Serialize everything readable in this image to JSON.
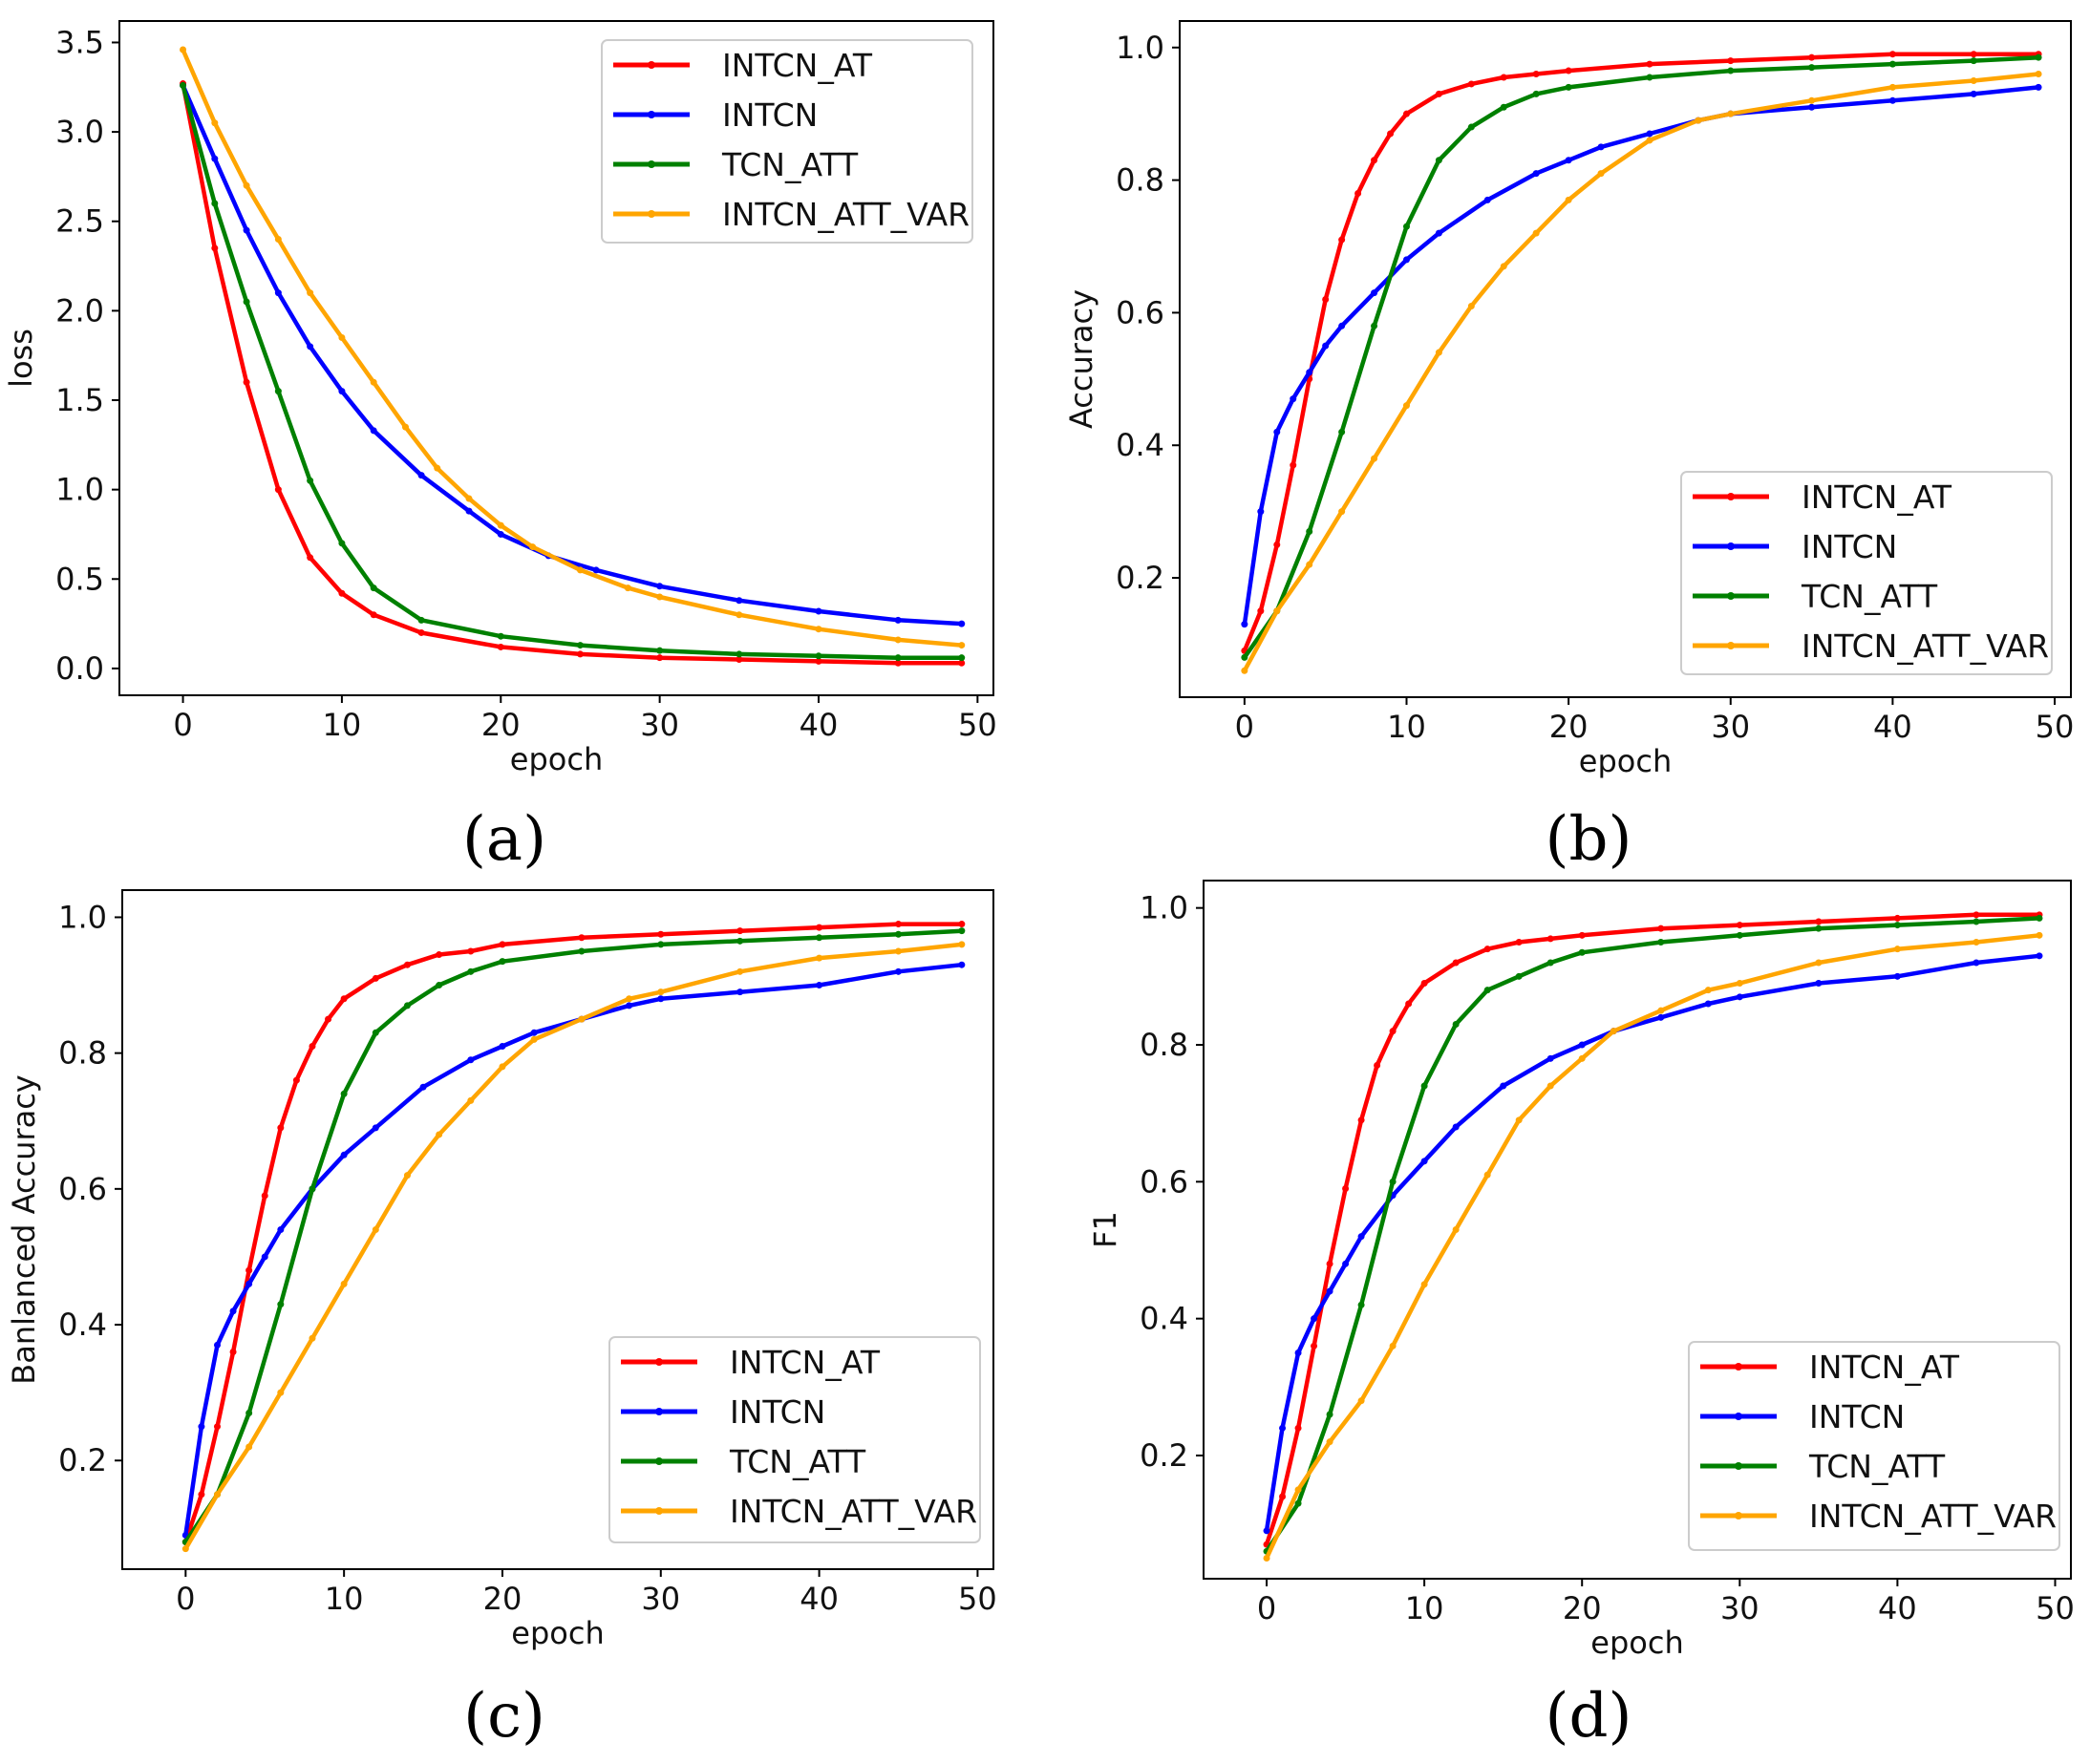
{
  "figure": {
    "panel_labels": [
      "(a)",
      "(b)",
      "(c)",
      "(d)"
    ]
  },
  "colors": {
    "INTCN_AT": "#ff0000",
    "INTCN": "#0000ff",
    "TCN_ATT": "#008000",
    "INTCN_ATT_VAR": "#ffa500"
  },
  "chart_data": [
    {
      "type": "line",
      "panel": "(a)",
      "title": "",
      "xlabel": "epoch",
      "ylabel": "loss",
      "xlim": [
        -4,
        51
      ],
      "ylim": [
        -0.15,
        3.62
      ],
      "xticks": [
        0,
        10,
        20,
        30,
        40,
        50
      ],
      "yticks": [
        0.0,
        0.5,
        1.0,
        1.5,
        2.0,
        2.5,
        3.0,
        3.5
      ],
      "ytick_labels": [
        "0.0",
        "0.5",
        "1.0",
        "1.5",
        "2.0",
        "2.5",
        "3.0",
        "3.5"
      ],
      "legend_position": "top-right",
      "series": [
        {
          "name": "INTCN_AT",
          "x": [
            0,
            2,
            4,
            6,
            8,
            10,
            12,
            15,
            20,
            25,
            30,
            35,
            40,
            45,
            49
          ],
          "values": [
            3.27,
            2.35,
            1.6,
            1.0,
            0.62,
            0.42,
            0.3,
            0.2,
            0.12,
            0.08,
            0.06,
            0.05,
            0.04,
            0.03,
            0.03
          ]
        },
        {
          "name": "INTCN",
          "x": [
            0,
            2,
            4,
            6,
            8,
            10,
            12,
            15,
            18,
            20,
            23,
            26,
            30,
            35,
            40,
            45,
            49
          ],
          "values": [
            3.26,
            2.85,
            2.45,
            2.1,
            1.8,
            1.55,
            1.33,
            1.08,
            0.88,
            0.75,
            0.63,
            0.55,
            0.46,
            0.38,
            0.32,
            0.27,
            0.25
          ]
        },
        {
          "name": "TCN_ATT",
          "x": [
            0,
            2,
            4,
            6,
            8,
            10,
            12,
            15,
            20,
            25,
            30,
            35,
            40,
            45,
            49
          ],
          "values": [
            3.26,
            2.6,
            2.05,
            1.55,
            1.05,
            0.7,
            0.45,
            0.27,
            0.18,
            0.13,
            0.1,
            0.08,
            0.07,
            0.06,
            0.06
          ]
        },
        {
          "name": "INTCN_ATT_VAR",
          "x": [
            0,
            2,
            4,
            6,
            8,
            10,
            12,
            14,
            16,
            18,
            20,
            22,
            25,
            28,
            30,
            35,
            40,
            45,
            49
          ],
          "values": [
            3.46,
            3.05,
            2.7,
            2.4,
            2.1,
            1.85,
            1.6,
            1.35,
            1.12,
            0.95,
            0.8,
            0.68,
            0.55,
            0.45,
            0.4,
            0.3,
            0.22,
            0.16,
            0.13
          ]
        }
      ]
    },
    {
      "type": "line",
      "panel": "(b)",
      "title": "",
      "xlabel": "epoch",
      "ylabel": "Accuracy",
      "xlim": [
        -4,
        51
      ],
      "ylim": [
        0.02,
        1.04
      ],
      "xticks": [
        0,
        10,
        20,
        30,
        40,
        50
      ],
      "yticks": [
        0.2,
        0.4,
        0.6,
        0.8,
        1.0
      ],
      "ytick_labels": [
        "0.2",
        "0.4",
        "0.6",
        "0.8",
        "1.0"
      ],
      "legend_position": "bottom-right",
      "series": [
        {
          "name": "INTCN_AT",
          "x": [
            0,
            1,
            2,
            3,
            4,
            5,
            6,
            7,
            8,
            9,
            10,
            12,
            14,
            16,
            18,
            20,
            25,
            30,
            35,
            40,
            45,
            49
          ],
          "values": [
            0.09,
            0.15,
            0.25,
            0.37,
            0.5,
            0.62,
            0.71,
            0.78,
            0.83,
            0.87,
            0.9,
            0.93,
            0.945,
            0.955,
            0.96,
            0.965,
            0.975,
            0.98,
            0.985,
            0.99,
            0.99,
            0.99
          ]
        },
        {
          "name": "INTCN",
          "x": [
            0,
            1,
            2,
            3,
            4,
            5,
            6,
            8,
            10,
            12,
            15,
            18,
            20,
            22,
            25,
            28,
            30,
            35,
            40,
            45,
            49
          ],
          "values": [
            0.13,
            0.3,
            0.42,
            0.47,
            0.51,
            0.55,
            0.58,
            0.63,
            0.68,
            0.72,
            0.77,
            0.81,
            0.83,
            0.85,
            0.87,
            0.89,
            0.9,
            0.91,
            0.92,
            0.93,
            0.94
          ]
        },
        {
          "name": "TCN_ATT",
          "x": [
            0,
            2,
            4,
            6,
            8,
            10,
            12,
            14,
            16,
            18,
            20,
            25,
            30,
            35,
            40,
            45,
            49
          ],
          "values": [
            0.08,
            0.15,
            0.27,
            0.42,
            0.58,
            0.73,
            0.83,
            0.88,
            0.91,
            0.93,
            0.94,
            0.955,
            0.965,
            0.97,
            0.975,
            0.98,
            0.985
          ]
        },
        {
          "name": "INTCN_ATT_VAR",
          "x": [
            0,
            2,
            4,
            6,
            8,
            10,
            12,
            14,
            16,
            18,
            20,
            22,
            25,
            28,
            30,
            35,
            40,
            45,
            49
          ],
          "values": [
            0.06,
            0.15,
            0.22,
            0.3,
            0.38,
            0.46,
            0.54,
            0.61,
            0.67,
            0.72,
            0.77,
            0.81,
            0.86,
            0.89,
            0.9,
            0.92,
            0.94,
            0.95,
            0.96
          ]
        }
      ]
    },
    {
      "type": "line",
      "panel": "(c)",
      "title": "",
      "xlabel": "epoch",
      "ylabel": "Banlanced Accuracy",
      "xlim": [
        -4,
        51
      ],
      "ylim": [
        0.04,
        1.04
      ],
      "xticks": [
        0,
        10,
        20,
        30,
        40,
        50
      ],
      "yticks": [
        0.2,
        0.4,
        0.6,
        0.8,
        1.0
      ],
      "ytick_labels": [
        "0.2",
        "0.4",
        "0.6",
        "0.8",
        "1.0"
      ],
      "legend_position": "bottom-right",
      "series": [
        {
          "name": "INTCN_AT",
          "x": [
            0,
            1,
            2,
            3,
            4,
            5,
            6,
            7,
            8,
            9,
            10,
            12,
            14,
            16,
            18,
            20,
            25,
            30,
            35,
            40,
            45,
            49
          ],
          "values": [
            0.08,
            0.15,
            0.25,
            0.36,
            0.48,
            0.59,
            0.69,
            0.76,
            0.81,
            0.85,
            0.88,
            0.91,
            0.93,
            0.945,
            0.95,
            0.96,
            0.97,
            0.975,
            0.98,
            0.985,
            0.99,
            0.99
          ]
        },
        {
          "name": "INTCN",
          "x": [
            0,
            1,
            2,
            3,
            4,
            5,
            6,
            8,
            10,
            12,
            15,
            18,
            20,
            22,
            25,
            28,
            30,
            35,
            40,
            45,
            49
          ],
          "values": [
            0.09,
            0.25,
            0.37,
            0.42,
            0.46,
            0.5,
            0.54,
            0.6,
            0.65,
            0.69,
            0.75,
            0.79,
            0.81,
            0.83,
            0.85,
            0.87,
            0.88,
            0.89,
            0.9,
            0.92,
            0.93
          ]
        },
        {
          "name": "TCN_ATT",
          "x": [
            0,
            2,
            4,
            6,
            8,
            10,
            12,
            14,
            16,
            18,
            20,
            25,
            30,
            35,
            40,
            45,
            49
          ],
          "values": [
            0.08,
            0.15,
            0.27,
            0.43,
            0.6,
            0.74,
            0.83,
            0.87,
            0.9,
            0.92,
            0.935,
            0.95,
            0.96,
            0.965,
            0.97,
            0.975,
            0.98
          ]
        },
        {
          "name": "INTCN_ATT_VAR",
          "x": [
            0,
            2,
            4,
            6,
            8,
            10,
            12,
            14,
            16,
            18,
            20,
            22,
            25,
            28,
            30,
            35,
            40,
            45,
            49
          ],
          "values": [
            0.07,
            0.15,
            0.22,
            0.3,
            0.38,
            0.46,
            0.54,
            0.62,
            0.68,
            0.73,
            0.78,
            0.82,
            0.85,
            0.88,
            0.89,
            0.92,
            0.94,
            0.95,
            0.96
          ]
        }
      ]
    },
    {
      "type": "line",
      "panel": "(d)",
      "title": "",
      "xlabel": "epoch",
      "ylabel": "F1",
      "xlim": [
        -4,
        51
      ],
      "ylim": [
        0.02,
        1.04
      ],
      "xticks": [
        0,
        10,
        20,
        30,
        40,
        50
      ],
      "yticks": [
        0.2,
        0.4,
        0.6,
        0.8,
        1.0
      ],
      "ytick_labels": [
        "0.2",
        "0.4",
        "0.6",
        "0.8",
        "1.0"
      ],
      "legend_position": "bottom-right",
      "series": [
        {
          "name": "INTCN_AT",
          "x": [
            0,
            1,
            2,
            3,
            4,
            5,
            6,
            7,
            8,
            9,
            10,
            12,
            14,
            16,
            18,
            20,
            25,
            30,
            35,
            40,
            45,
            49
          ],
          "values": [
            0.07,
            0.14,
            0.24,
            0.36,
            0.48,
            0.59,
            0.69,
            0.77,
            0.82,
            0.86,
            0.89,
            0.92,
            0.94,
            0.95,
            0.955,
            0.96,
            0.97,
            0.975,
            0.98,
            0.985,
            0.99,
            0.99
          ]
        },
        {
          "name": "INTCN",
          "x": [
            0,
            1,
            2,
            3,
            4,
            5,
            6,
            8,
            10,
            12,
            15,
            18,
            20,
            22,
            25,
            28,
            30,
            35,
            40,
            45,
            49
          ],
          "values": [
            0.09,
            0.24,
            0.35,
            0.4,
            0.44,
            0.48,
            0.52,
            0.58,
            0.63,
            0.68,
            0.74,
            0.78,
            0.8,
            0.82,
            0.84,
            0.86,
            0.87,
            0.89,
            0.9,
            0.92,
            0.93
          ]
        },
        {
          "name": "TCN_ATT",
          "x": [
            0,
            2,
            4,
            6,
            8,
            10,
            12,
            14,
            16,
            18,
            20,
            25,
            30,
            35,
            40,
            45,
            49
          ],
          "values": [
            0.06,
            0.13,
            0.26,
            0.42,
            0.6,
            0.74,
            0.83,
            0.88,
            0.9,
            0.92,
            0.935,
            0.95,
            0.96,
            0.97,
            0.975,
            0.98,
            0.985
          ]
        },
        {
          "name": "INTCN_ATT_VAR",
          "x": [
            0,
            2,
            4,
            6,
            8,
            10,
            12,
            14,
            16,
            18,
            20,
            22,
            25,
            28,
            30,
            35,
            40,
            45,
            49
          ],
          "values": [
            0.05,
            0.15,
            0.22,
            0.28,
            0.36,
            0.45,
            0.53,
            0.61,
            0.69,
            0.74,
            0.78,
            0.82,
            0.85,
            0.88,
            0.89,
            0.92,
            0.94,
            0.95,
            0.96
          ]
        }
      ]
    }
  ]
}
